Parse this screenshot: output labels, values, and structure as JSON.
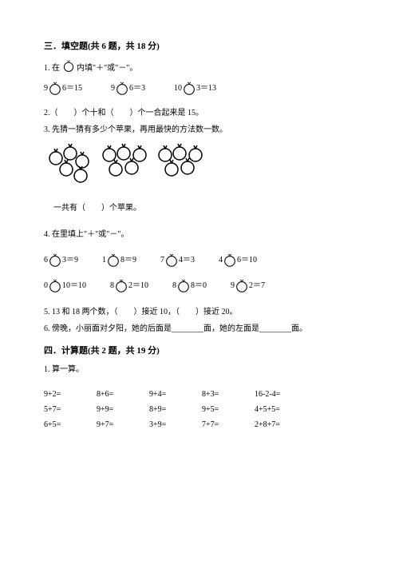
{
  "section3": {
    "title": "三．填空题(共 6 题，共 18 分)",
    "q1": {
      "text": "1. 在",
      "text2": "内填\"＋\"或\"－\"。",
      "eqs": [
        "9",
        "6＝15",
        "9",
        "6＝3",
        "10",
        "3＝13"
      ]
    },
    "q2": "2.（　　）个十和（　　）个一合起来是 15。",
    "q3": "3. 先猜一猜有多少个苹果，再用最快的方法数一数。",
    "q3b": "一共有（　　）个苹果。",
    "q4": {
      "text": "4. 在里填上\"＋\"或\"－\"。",
      "row1": [
        [
          "6",
          "3＝9"
        ],
        [
          "1",
          "8＝9"
        ],
        [
          "7",
          "4＝3"
        ],
        [
          "4",
          "6＝10"
        ]
      ],
      "row2": [
        [
          "0",
          "10＝10"
        ],
        [
          "8",
          "2＝10"
        ],
        [
          "8",
          "8＝0"
        ],
        [
          "9",
          "2＝7"
        ]
      ]
    },
    "q5": "5. 13 和 18 两个数，（　　）接近 10，（　　）接近 20。",
    "q6": "6. 傍晚，小丽面对夕阳，她的后面是________面，她的左面是________面。"
  },
  "section4": {
    "title": "四．计算题(共 2 题，共 19 分)",
    "q1": "1. 算一算。",
    "rows": [
      [
        "9+2=",
        "8+6=",
        "9+4=",
        "8+3=",
        "16-2-4="
      ],
      [
        "5+7=",
        "9+9=",
        "8+9=",
        "9+5=",
        "4+5+5="
      ],
      [
        "6+5=",
        "9+7=",
        "3+9=",
        "7+7=",
        "2+8+7="
      ]
    ]
  }
}
